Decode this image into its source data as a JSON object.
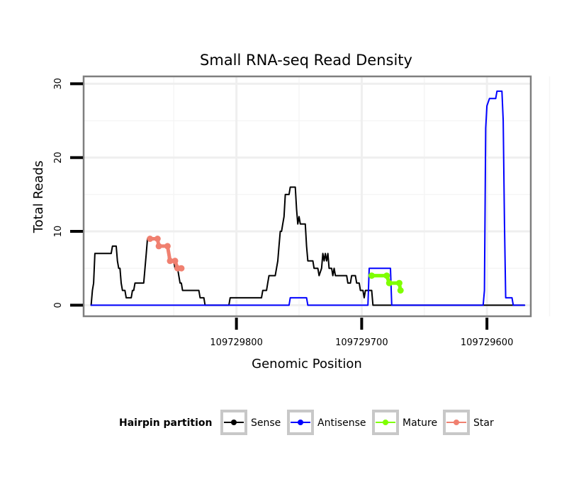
{
  "chart_data": {
    "type": "line",
    "title": "Small RNA-seq Read Density",
    "xlabel": "Genomic Position",
    "ylabel": "Total Reads",
    "x_reversed": true,
    "xlim": [
      109729922,
      109729565
    ],
    "ylim": [
      -1.5,
      31
    ],
    "x_ticks": [
      {
        "value": 109729800,
        "label": "109729800"
      },
      {
        "value": 109729700,
        "label": "109729700"
      },
      {
        "value": 109729600,
        "label": "109729600"
      }
    ],
    "y_ticks": [
      {
        "value": 0,
        "label": "0"
      },
      {
        "value": 10,
        "label": "10"
      },
      {
        "value": 20,
        "label": "20"
      },
      {
        "value": 30,
        "label": "30"
      }
    ],
    "grid": true,
    "legend": {
      "title": "Hairpin partition",
      "position": "bottom",
      "entries": [
        {
          "label": "Sense",
          "color": "#000000"
        },
        {
          "label": "Antisense",
          "color": "#0000ff"
        },
        {
          "label": "Mature",
          "color": "#7fff00"
        },
        {
          "label": "Star",
          "color": "#f08070"
        }
      ]
    },
    "series": [
      {
        "name": "Sense",
        "color": "#000000",
        "points": [
          [
            109729916,
            0
          ],
          [
            109729915,
            2
          ],
          [
            109729914,
            3
          ],
          [
            109729913,
            7
          ],
          [
            109729900,
            7
          ],
          [
            109729899,
            8
          ],
          [
            109729896,
            8
          ],
          [
            109729895,
            6
          ],
          [
            109729894,
            5
          ],
          [
            109729893,
            5
          ],
          [
            109729892,
            3
          ],
          [
            109729891,
            2
          ],
          [
            109729889,
            2
          ],
          [
            109729888,
            1
          ],
          [
            109729884,
            1
          ],
          [
            109729883,
            2
          ],
          [
            109729882,
            2
          ],
          [
            109729881,
            3
          ],
          [
            109729874,
            3
          ],
          [
            109729873,
            5
          ],
          [
            109729872,
            7
          ],
          [
            109729871,
            9
          ],
          [
            109729863,
            9
          ],
          [
            109729862,
            8
          ],
          [
            109729855,
            8
          ],
          [
            109729854,
            6
          ],
          [
            109729850,
            6
          ],
          [
            109729849,
            5
          ],
          [
            109729847,
            5
          ],
          [
            109729846,
            4
          ],
          [
            109729845,
            3
          ],
          [
            109729844,
            3
          ],
          [
            109729843,
            2
          ],
          [
            109729830,
            2
          ],
          [
            109729829,
            1
          ],
          [
            109729826,
            1
          ],
          [
            109729825,
            0
          ],
          [
            109729807,
            0
          ],
          [
            109729806,
            0
          ],
          [
            109729805,
            1
          ],
          [
            109729780,
            1
          ],
          [
            109729779,
            2
          ],
          [
            109729776,
            2
          ],
          [
            109729775,
            3
          ],
          [
            109729774,
            4
          ],
          [
            109729769,
            4
          ],
          [
            109729768,
            5
          ],
          [
            109729767,
            6
          ],
          [
            109729766,
            8
          ],
          [
            109729765,
            10
          ],
          [
            109729764,
            10
          ],
          [
            109729763,
            11
          ],
          [
            109729762,
            12
          ],
          [
            109729761,
            15
          ],
          [
            109729758,
            15
          ],
          [
            109729757,
            16
          ],
          [
            109729753,
            16
          ],
          [
            109729752,
            13
          ],
          [
            109729751,
            11
          ],
          [
            109729750,
            12
          ],
          [
            109729749,
            11
          ],
          [
            109729745,
            11
          ],
          [
            109729744,
            8
          ],
          [
            109729743,
            6
          ],
          [
            109729739,
            6
          ],
          [
            109729738,
            5
          ],
          [
            109729735,
            5
          ],
          [
            109729734,
            4
          ],
          [
            109729732,
            5
          ],
          [
            109729731,
            7
          ],
          [
            109729730,
            6
          ],
          [
            109729729,
            7
          ],
          [
            109729728,
            6
          ],
          [
            109729727,
            7
          ],
          [
            109729726,
            5
          ],
          [
            109729724,
            5
          ],
          [
            109729723,
            4
          ],
          [
            109729722,
            5
          ],
          [
            109729721,
            4
          ],
          [
            109729712,
            4
          ],
          [
            109729711,
            3
          ],
          [
            109729709,
            3
          ],
          [
            109729708,
            4
          ],
          [
            109729705,
            4
          ],
          [
            109729704,
            3
          ],
          [
            109729702,
            3
          ],
          [
            109729701,
            2
          ],
          [
            109729699,
            2
          ],
          [
            109729698,
            1
          ],
          [
            109729697,
            2
          ],
          [
            109729692,
            2
          ],
          [
            109729691,
            0
          ],
          [
            109729570,
            0
          ]
        ]
      },
      {
        "name": "Antisense",
        "color": "#0000ff",
        "points": [
          [
            109729916,
            0
          ],
          [
            109729758,
            0
          ],
          [
            109729757,
            1
          ],
          [
            109729744,
            1
          ],
          [
            109729743,
            0
          ],
          [
            109729695,
            0
          ],
          [
            109729694,
            5
          ],
          [
            109729677,
            5
          ],
          [
            109729676,
            0
          ],
          [
            109729603,
            0
          ],
          [
            109729602,
            2
          ],
          [
            109729601,
            24
          ],
          [
            109729600,
            27
          ],
          [
            109729598,
            28
          ],
          [
            109729593,
            28
          ],
          [
            109729592,
            29
          ],
          [
            109729588,
            29
          ],
          [
            109729587,
            25
          ],
          [
            109729586,
            11
          ],
          [
            109729585,
            1
          ],
          [
            109729580,
            1
          ],
          [
            109729579,
            0
          ],
          [
            109729570,
            0
          ]
        ]
      },
      {
        "name": "Mature",
        "color": "#7fff00",
        "points": [
          [
            109729692,
            4
          ],
          [
            109729680,
            4
          ],
          [
            109729678,
            3
          ],
          [
            109729670,
            3
          ],
          [
            109729669,
            2
          ]
        ]
      },
      {
        "name": "Star",
        "color": "#f08070",
        "points": [
          [
            109729869,
            9
          ],
          [
            109729863,
            9
          ],
          [
            109729862,
            8
          ],
          [
            109729855,
            8
          ],
          [
            109729853,
            6
          ],
          [
            109729849,
            6
          ],
          [
            109729847,
            5
          ],
          [
            109729844,
            5
          ]
        ]
      }
    ]
  }
}
